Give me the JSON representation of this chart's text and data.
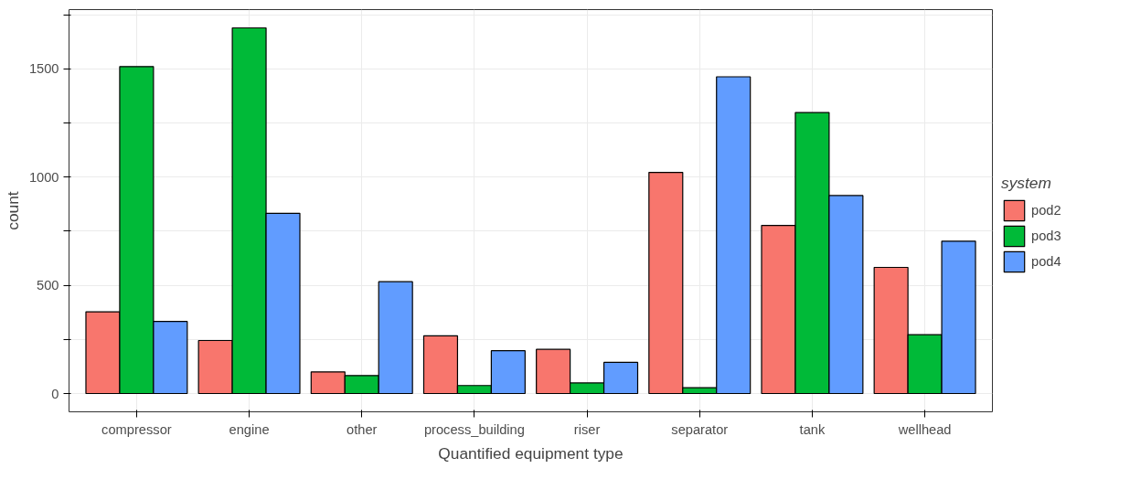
{
  "chart_data": {
    "type": "bar",
    "xlabel": "Quantified equipment type",
    "ylabel": "count",
    "legend_title": "system",
    "categories": [
      "compressor",
      "engine",
      "other",
      "process_building",
      "riser",
      "separator",
      "tank",
      "wellhead"
    ],
    "series": [
      {
        "name": "pod2",
        "color": "#f8766d",
        "values": [
          378,
          245,
          100,
          267,
          204,
          1022,
          777,
          583
        ]
      },
      {
        "name": "pod3",
        "color": "#00ba38",
        "values": [
          1511,
          1690,
          83,
          37,
          49,
          27,
          1299,
          272
        ]
      },
      {
        "name": "pod4",
        "color": "#619cff",
        "values": [
          333,
          833,
          517,
          198,
          144,
          1464,
          915,
          704
        ]
      }
    ],
    "ylim": [
      -84.5,
      1774.5
    ],
    "yticks": [
      0,
      {
        "value": 250,
        "label": null
      },
      500,
      {
        "value": 750,
        "label": null
      },
      1000,
      {
        "value": 1250,
        "label": null
      },
      1500,
      {
        "value": 1750,
        "label": null
      }
    ],
    "grid": true,
    "legend": "right"
  }
}
